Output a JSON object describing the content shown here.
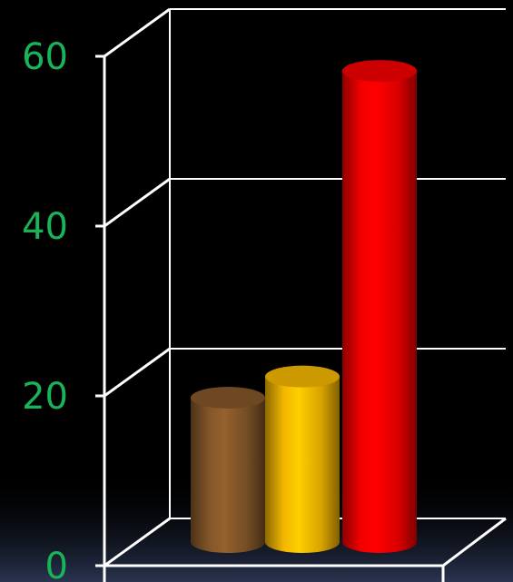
{
  "chart_data": {
    "type": "bar",
    "style": "3d-cylinder",
    "categories": [
      "",
      "",
      ""
    ],
    "values": [
      17,
      19.5,
      55.5
    ],
    "bar_colors": [
      "#8a5a2b",
      "#ffc000",
      "#ff0000"
    ],
    "ylim": [
      0,
      60
    ],
    "yticks": [
      0,
      20,
      40,
      60
    ],
    "ytick_labels": [
      "0",
      "20",
      "40",
      "60"
    ],
    "grid": true,
    "legend": "none",
    "tick_label_color": "#19b35a",
    "grid_color": "#ffffff",
    "background_color": "#000000",
    "floor_glow_color": "#2a3450"
  }
}
